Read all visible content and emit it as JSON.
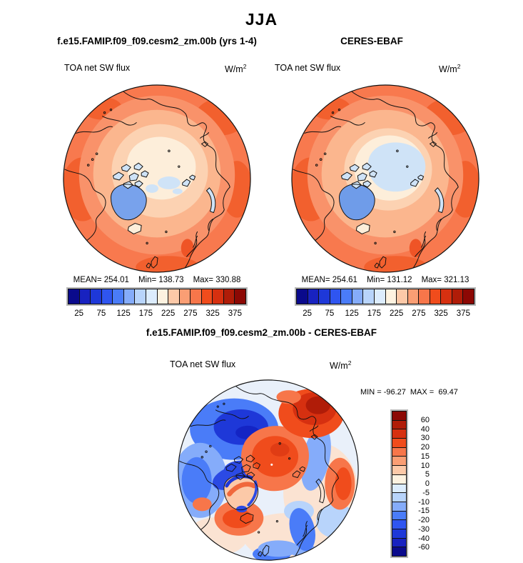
{
  "title": "JJA",
  "panels": {
    "model": {
      "header": "f.e15.FAMIP.f09_f09.cesm2_zm.00b (yrs 1-4)",
      "field_label": "TOA net SW flux",
      "units_base": "W/m",
      "units_exponent": "2",
      "stats": {
        "mean": "MEAN= 254.01",
        "min": "Min= 138.73",
        "max": "Max= 330.88"
      }
    },
    "obs": {
      "header": "CERES-EBAF",
      "field_label": "TOA net SW flux",
      "units_base": "W/m",
      "units_exponent": "2",
      "stats": {
        "mean": "MEAN= 254.61",
        "min": "Min= 131.12",
        "max": "Max= 321.13"
      }
    },
    "diff": {
      "header": "f.e15.FAMIP.f09_f09.cesm2_zm.00b - CERES-EBAF",
      "field_label": "TOA net SW flux",
      "units_base": "W/m",
      "units_exponent": "2",
      "min_label": "MIN = -96.27",
      "max_label": "MAX =  69.47"
    }
  },
  "colorbar_absolute": {
    "tick_labels": [
      "25",
      "75",
      "125",
      "175",
      "225",
      "275",
      "325",
      "375"
    ],
    "segment_colors": [
      "#0a0a8c",
      "#1822c0",
      "#1e38d8",
      "#2f55f0",
      "#4a7cf8",
      "#85acfa",
      "#b8d4fb",
      "#dcecfd",
      "#fdf2e0",
      "#fcc9a8",
      "#fa9e74",
      "#f7764a",
      "#f04c1c",
      "#d63010",
      "#b01c08",
      "#8c0804"
    ]
  },
  "colorbar_difference": {
    "boundary_labels": [
      "60",
      "40",
      "30",
      "20",
      "15",
      "10",
      "5",
      "0",
      "-5",
      "-10",
      "-15",
      "-20",
      "-30",
      "-40",
      "-60"
    ],
    "segment_colors_top_to_bottom": [
      "#8c0804",
      "#b01c08",
      "#d63010",
      "#f04c1c",
      "#f7764a",
      "#fa9e74",
      "#fcc9a8",
      "#fdf2e0",
      "#dcecfd",
      "#b8d4fb",
      "#85acfa",
      "#4a7cf8",
      "#2f55f0",
      "#1e38d8",
      "#1822c0",
      "#0a0a8c"
    ]
  },
  "chart_data": [
    {
      "type": "heatmap",
      "subtype": "north-polar-stereographic-map",
      "season": "JJA",
      "title": "f.e15.FAMIP.f09_f09.cesm2_zm.00b (yrs 1-4)",
      "variable": "TOA net SW flux",
      "units": "W/m^2",
      "stats": {
        "mean": 254.01,
        "min": 138.73,
        "max": 330.88
      },
      "colorbar_tick_values": [
        25,
        75,
        125,
        175,
        225,
        275,
        325,
        375
      ],
      "contour_levels": [
        0,
        25,
        50,
        75,
        100,
        125,
        150,
        175,
        200,
        225,
        250,
        275,
        300,
        325,
        350,
        375,
        400
      ],
      "palette": [
        "#0a0a8c",
        "#1822c0",
        "#1e38d8",
        "#2f55f0",
        "#4a7cf8",
        "#85acfa",
        "#b8d4fb",
        "#dcecfd",
        "#fdf2e0",
        "#fcc9a8",
        "#fa9e74",
        "#f7764a",
        "#f04c1c",
        "#d63010",
        "#b01c08",
        "#8c0804"
      ],
      "legend_position": "bottom"
    },
    {
      "type": "heatmap",
      "subtype": "north-polar-stereographic-map",
      "season": "JJA",
      "title": "CERES-EBAF",
      "variable": "TOA net SW flux",
      "units": "W/m^2",
      "stats": {
        "mean": 254.61,
        "min": 131.12,
        "max": 321.13
      },
      "colorbar_tick_values": [
        25,
        75,
        125,
        175,
        225,
        275,
        325,
        375
      ],
      "contour_levels": [
        0,
        25,
        50,
        75,
        100,
        125,
        150,
        175,
        200,
        225,
        250,
        275,
        300,
        325,
        350,
        375,
        400
      ],
      "palette": [
        "#0a0a8c",
        "#1822c0",
        "#1e38d8",
        "#2f55f0",
        "#4a7cf8",
        "#85acfa",
        "#b8d4fb",
        "#dcecfd",
        "#fdf2e0",
        "#fcc9a8",
        "#fa9e74",
        "#f7764a",
        "#f04c1c",
        "#d63010",
        "#b01c08",
        "#8c0804"
      ],
      "legend_position": "bottom"
    },
    {
      "type": "heatmap",
      "subtype": "north-polar-stereographic-map",
      "season": "JJA",
      "title": "f.e15.FAMIP.f09_f09.cesm2_zm.00b - CERES-EBAF",
      "variable": "TOA net SW flux",
      "units": "W/m^2",
      "stats": {
        "min": -96.27,
        "max": 69.47
      },
      "contour_levels": [
        -60,
        -40,
        -30,
        -20,
        -15,
        -10,
        -5,
        0,
        5,
        10,
        15,
        20,
        30,
        40,
        60
      ],
      "palette": [
        "#0a0a8c",
        "#1822c0",
        "#1e38d8",
        "#2f55f0",
        "#4a7cf8",
        "#85acfa",
        "#b8d4fb",
        "#dcecfd",
        "#fdf2e0",
        "#fcc9a8",
        "#fa9e74",
        "#f7764a",
        "#f04c1c",
        "#d63010",
        "#b01c08",
        "#8c0804"
      ],
      "legend_position": "right"
    }
  ]
}
